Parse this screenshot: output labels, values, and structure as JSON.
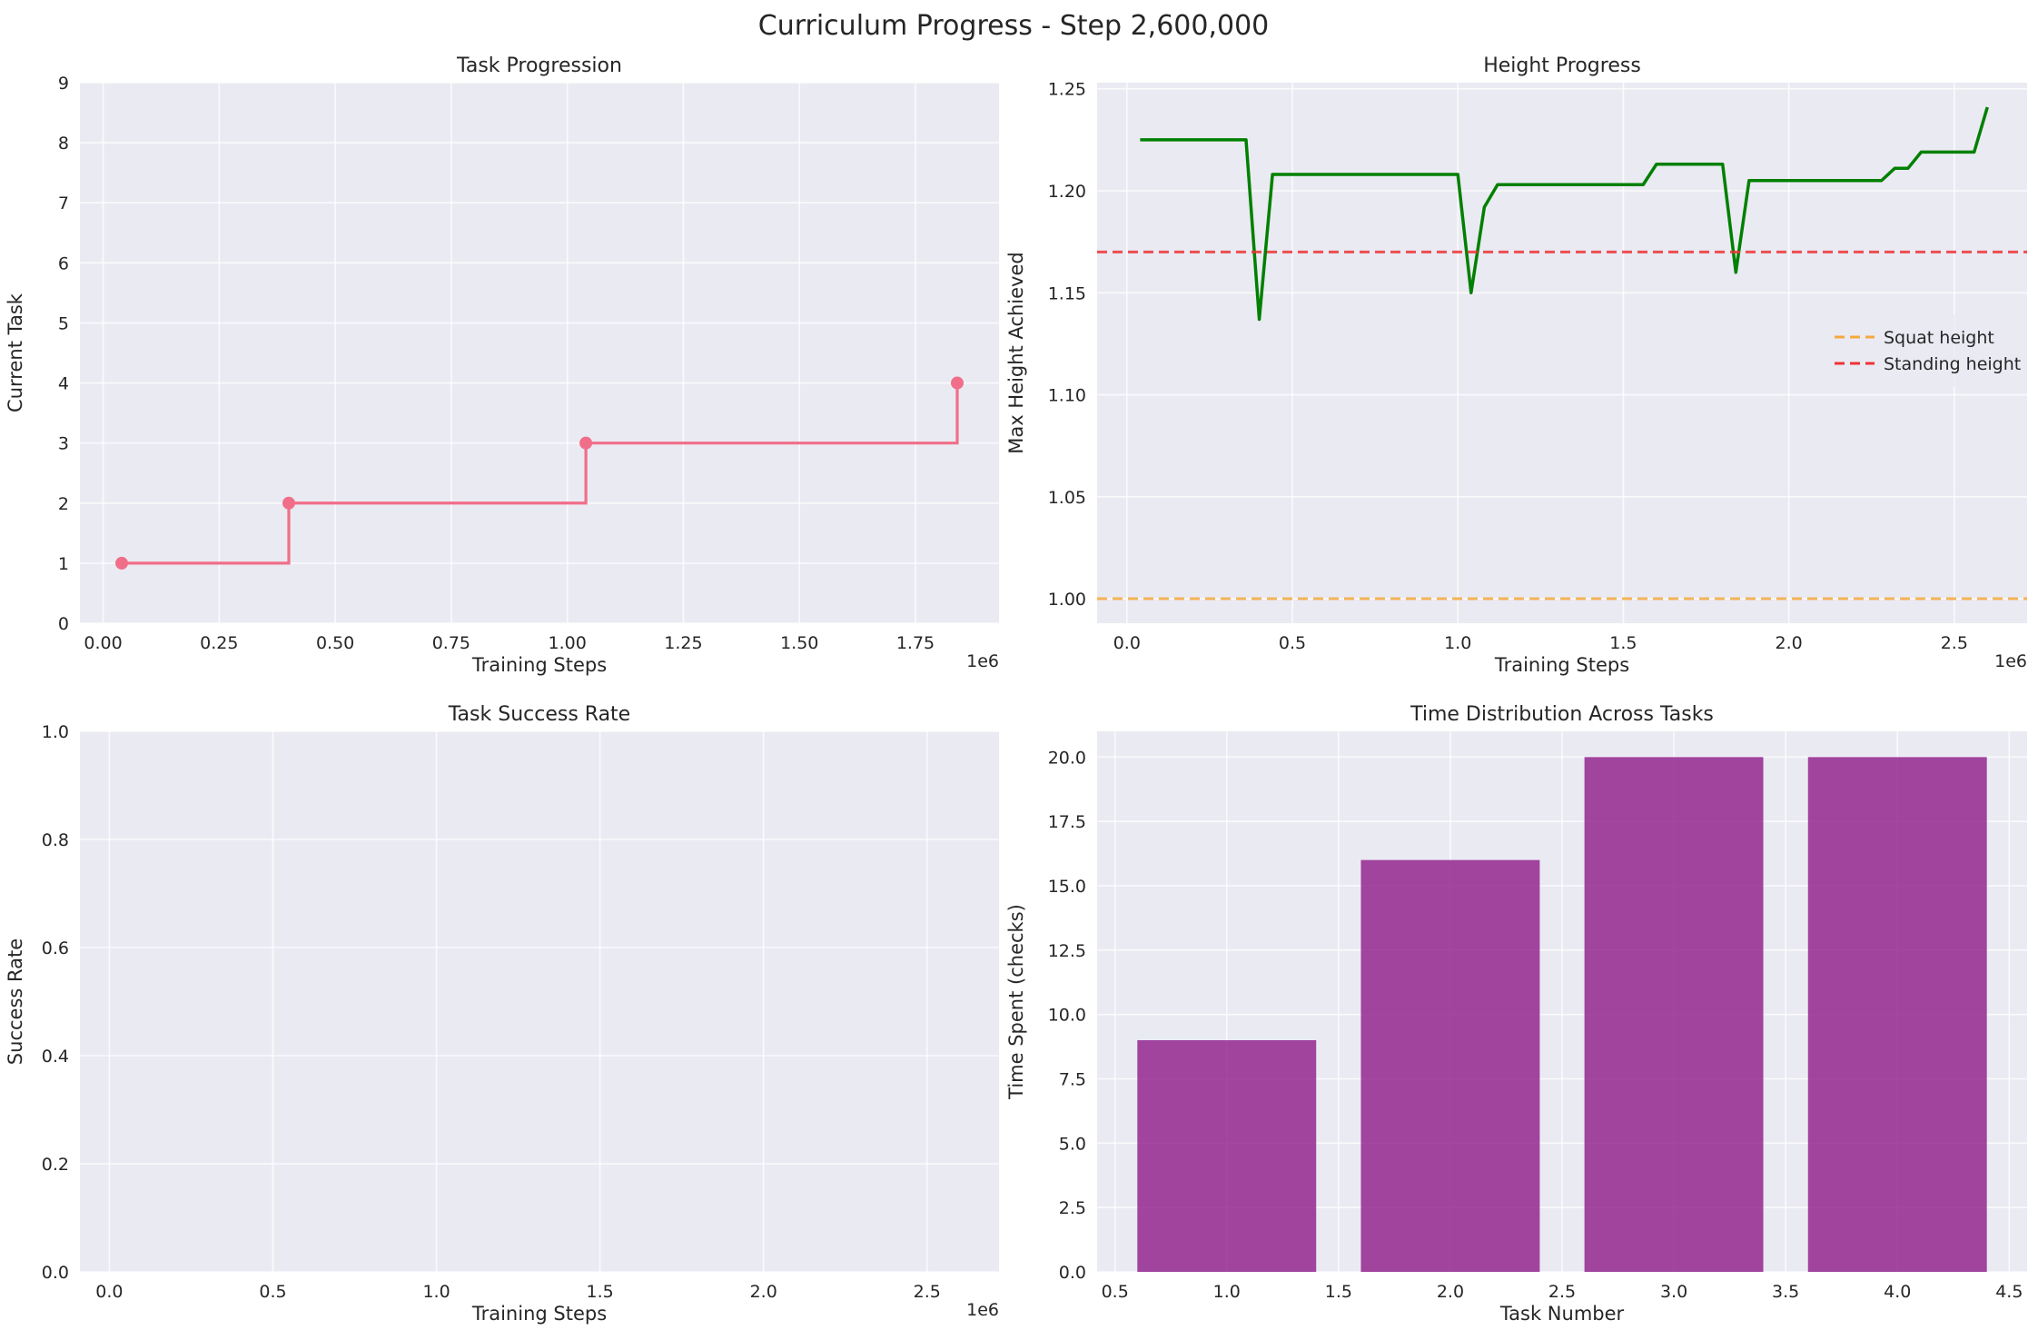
{
  "figure": {
    "title": "Curriculum Progress - Step 2,600,000"
  },
  "chart_data": [
    {
      "type": "line",
      "style": "step",
      "title": "Task Progression",
      "xlabel": "Training Steps",
      "ylabel": "Current Task",
      "x_offset_label": "1e6",
      "xlim": [
        -0.05,
        1.93
      ],
      "ylim": [
        0,
        9
      ],
      "xticks": [
        0.0,
        0.25,
        0.5,
        0.75,
        1.0,
        1.25,
        1.5,
        1.75
      ],
      "xtick_labels": [
        "0.00",
        "0.25",
        "0.50",
        "0.75",
        "1.00",
        "1.25",
        "1.50",
        "1.75"
      ],
      "yticks": [
        0,
        1,
        2,
        3,
        4,
        5,
        6,
        7,
        8,
        9
      ],
      "ytick_labels": [
        "0",
        "1",
        "2",
        "3",
        "4",
        "5",
        "6",
        "7",
        "8",
        "9"
      ],
      "grid": true,
      "color": "#f06e89",
      "series": [
        {
          "x": [
            0.04,
            0.4,
            1.04,
            1.84
          ],
          "y": [
            1,
            2,
            3,
            4
          ]
        }
      ]
    },
    {
      "type": "line",
      "title": "Height Progress",
      "xlabel": "Training Steps",
      "ylabel": "Max Height Achieved",
      "x_offset_label": "1e6",
      "xlim": [
        -0.09,
        2.72
      ],
      "ylim": [
        0.988,
        1.253
      ],
      "xticks": [
        0.0,
        0.5,
        1.0,
        1.5,
        2.0,
        2.5
      ],
      "xtick_labels": [
        "0.0",
        "0.5",
        "1.0",
        "1.5",
        "2.0",
        "2.5"
      ],
      "yticks": [
        1.0,
        1.05,
        1.1,
        1.15,
        1.2,
        1.25
      ],
      "ytick_labels": [
        "1.00",
        "1.05",
        "1.10",
        "1.15",
        "1.20",
        "1.25"
      ],
      "grid": true,
      "legend_position": "center-right",
      "series": [
        {
          "color": "#008000",
          "x": [
            0.04,
            0.08,
            0.12,
            0.16,
            0.2,
            0.24,
            0.28,
            0.32,
            0.36,
            0.4,
            0.44,
            0.48,
            0.52,
            0.56,
            0.6,
            0.64,
            0.68,
            0.72,
            0.76,
            0.8,
            0.84,
            0.88,
            0.92,
            0.96,
            1.0,
            1.04,
            1.08,
            1.12,
            1.16,
            1.2,
            1.24,
            1.28,
            1.32,
            1.36,
            1.4,
            1.44,
            1.48,
            1.52,
            1.56,
            1.6,
            1.64,
            1.68,
            1.72,
            1.76,
            1.8,
            1.84,
            1.88,
            1.92,
            1.96,
            2.0,
            2.04,
            2.08,
            2.12,
            2.16,
            2.2,
            2.24,
            2.28,
            2.32,
            2.36,
            2.4,
            2.44,
            2.48,
            2.52,
            2.56,
            2.6
          ],
          "y": [
            1.225,
            1.225,
            1.225,
            1.225,
            1.225,
            1.225,
            1.225,
            1.225,
            1.225,
            1.137,
            1.208,
            1.208,
            1.208,
            1.208,
            1.208,
            1.208,
            1.208,
            1.208,
            1.208,
            1.208,
            1.208,
            1.208,
            1.208,
            1.208,
            1.208,
            1.15,
            1.192,
            1.203,
            1.203,
            1.203,
            1.203,
            1.203,
            1.203,
            1.203,
            1.203,
            1.203,
            1.203,
            1.203,
            1.203,
            1.213,
            1.213,
            1.213,
            1.213,
            1.213,
            1.213,
            1.16,
            1.205,
            1.205,
            1.205,
            1.205,
            1.205,
            1.205,
            1.205,
            1.205,
            1.205,
            1.205,
            1.205,
            1.211,
            1.211,
            1.219,
            1.219,
            1.219,
            1.219,
            1.219,
            1.241
          ]
        },
        {
          "name": "Squat height",
          "style": "dashed",
          "color": "#f5a83d",
          "y_const": 1.0
        },
        {
          "name": "Standing height",
          "style": "dashed",
          "color": "#ee3333",
          "y_const": 1.17
        }
      ]
    },
    {
      "type": "line",
      "title": "Task Success Rate",
      "xlabel": "Training Steps",
      "ylabel": "Success Rate",
      "x_offset_label": "1e6",
      "xlim": [
        -0.09,
        2.72
      ],
      "ylim": [
        0,
        1
      ],
      "xticks": [
        0.0,
        0.5,
        1.0,
        1.5,
        2.0,
        2.5
      ],
      "xtick_labels": [
        "0.0",
        "0.5",
        "1.0",
        "1.5",
        "2.0",
        "2.5"
      ],
      "yticks": [
        0,
        0.2,
        0.4,
        0.6,
        0.8,
        1.0
      ],
      "ytick_labels": [
        "0.0",
        "0.2",
        "0.4",
        "0.6",
        "0.8",
        "1.0"
      ],
      "grid": true,
      "series": []
    },
    {
      "type": "bar",
      "title": "Time Distribution Across Tasks",
      "xlabel": "Task Number",
      "ylabel": "Time Spent (checks)",
      "xlim": [
        0.42,
        4.58
      ],
      "ylim": [
        0,
        21
      ],
      "xticks": [
        0.5,
        1.0,
        1.5,
        2.0,
        2.5,
        3.0,
        3.5,
        4.0,
        4.5
      ],
      "xtick_labels": [
        "0.5",
        "1.0",
        "1.5",
        "2.0",
        "2.5",
        "3.0",
        "3.5",
        "4.0",
        "4.5"
      ],
      "yticks": [
        0,
        2.5,
        5,
        7.5,
        10,
        12.5,
        15,
        17.5,
        20
      ],
      "ytick_labels": [
        "0.0",
        "2.5",
        "5.0",
        "7.5",
        "10.0",
        "12.5",
        "15.0",
        "17.5",
        "20.0"
      ],
      "grid": true,
      "color": "#93278f",
      "categories": [
        1,
        2,
        3,
        4
      ],
      "values": [
        9,
        16,
        20,
        20
      ]
    }
  ]
}
